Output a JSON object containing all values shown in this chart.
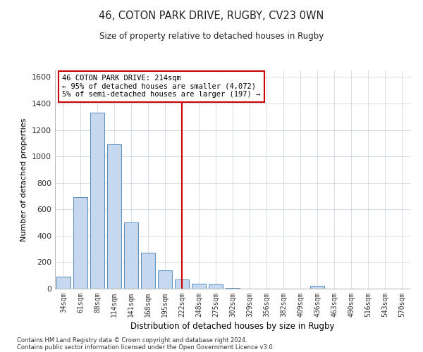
{
  "title": "46, COTON PARK DRIVE, RUGBY, CV23 0WN",
  "subtitle": "Size of property relative to detached houses in Rugby",
  "xlabel": "Distribution of detached houses by size in Rugby",
  "ylabel": "Number of detached properties",
  "categories": [
    "34sqm",
    "61sqm",
    "88sqm",
    "114sqm",
    "141sqm",
    "168sqm",
    "195sqm",
    "222sqm",
    "248sqm",
    "275sqm",
    "302sqm",
    "329sqm",
    "356sqm",
    "382sqm",
    "409sqm",
    "436sqm",
    "463sqm",
    "490sqm",
    "516sqm",
    "543sqm",
    "570sqm"
  ],
  "values": [
    90,
    690,
    1330,
    1090,
    500,
    270,
    140,
    70,
    35,
    30,
    5,
    0,
    0,
    0,
    0,
    20,
    0,
    0,
    0,
    0,
    0
  ],
  "bar_color": "#c5d8f0",
  "bar_edge_color": "#5b8db8",
  "vline_x_index": 7,
  "vline_color": "#cc0000",
  "annotation_text": "46 COTON PARK DRIVE: 214sqm\n← 95% of detached houses are smaller (4,072)\n5% of semi-detached houses are larger (197) →",
  "annotation_box_color": "#cc0000",
  "ylim": [
    0,
    1650
  ],
  "yticks": [
    0,
    200,
    400,
    600,
    800,
    1000,
    1200,
    1400,
    1600
  ],
  "footer1": "Contains HM Land Registry data © Crown copyright and database right 2024.",
  "footer2": "Contains public sector information licensed under the Open Government Licence v3.0.",
  "bg_color": "#ffffff",
  "grid_color": "#d0d8e8"
}
